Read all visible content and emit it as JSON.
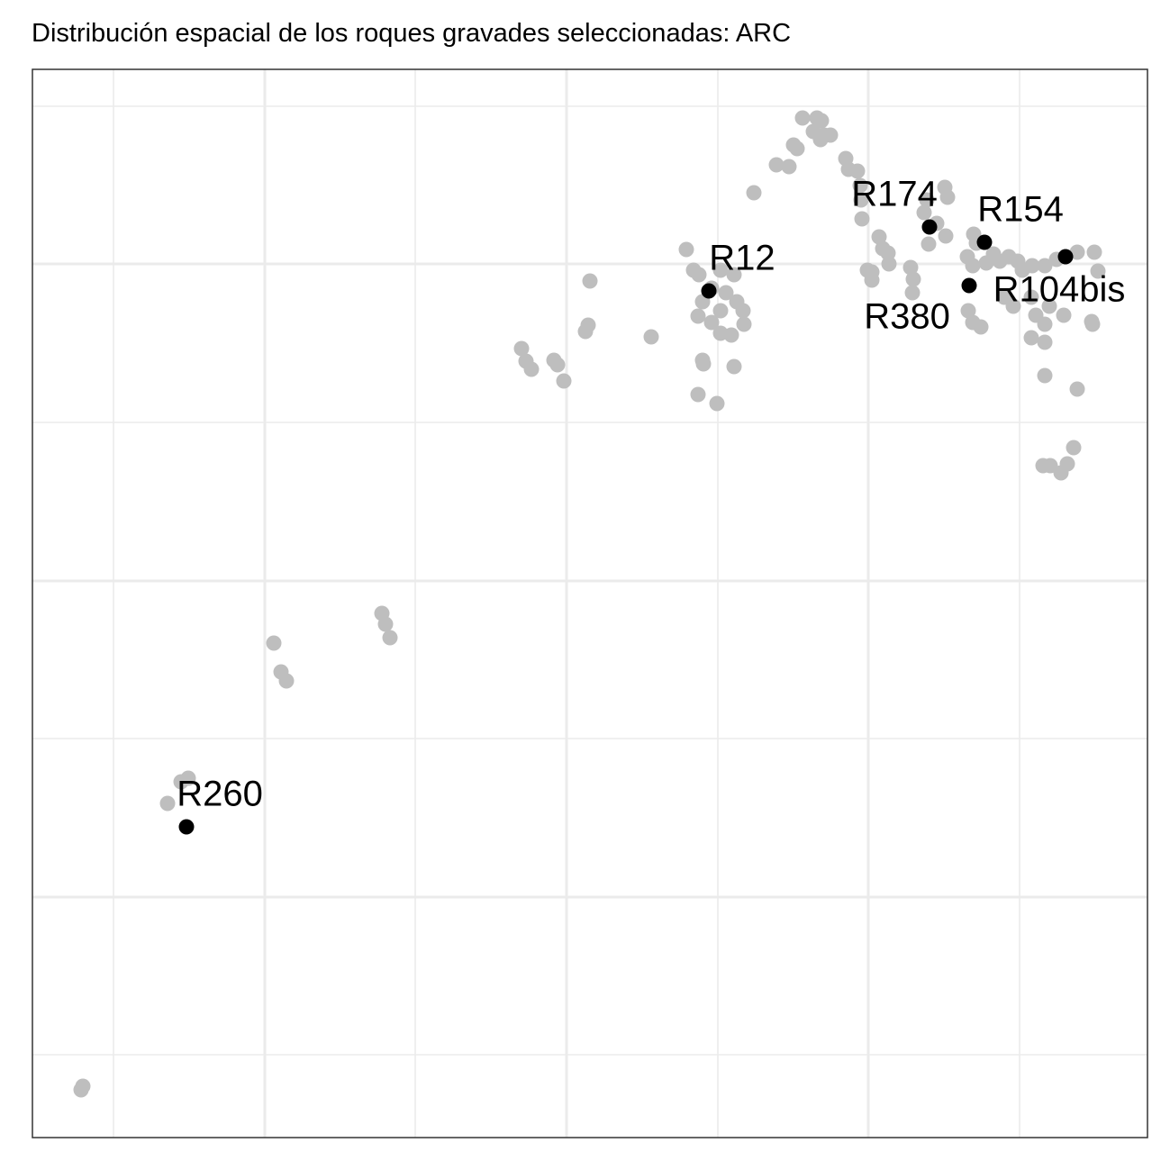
{
  "chart_data": {
    "type": "scatter",
    "title": "Distribución espacial de los roques gravades seleccionadas:  ARC",
    "xlim": [
      36,
      1274
    ],
    "ylim": [
      36,
      1222
    ],
    "xticks": [
      126,
      294,
      461,
      629,
      797,
      964,
      1132
    ],
    "yticks": [
      128,
      303,
      479,
      654,
      830,
      1006,
      1181
    ],
    "grid": true,
    "points": {
      "color": "#bebebe",
      "x": [
        891,
        907,
        912,
        903,
        915,
        922,
        911,
        881,
        885,
        862,
        876,
        837,
        939,
        942,
        952,
        955,
        956,
        957,
        1029,
        1026,
        1049,
        1052,
        1040,
        1031,
        1050,
        976,
        980,
        986,
        987,
        963,
        968,
        968,
        1011,
        1014,
        1013,
        1081,
        1084,
        1074,
        1080,
        1095,
        1103,
        1110,
        1120,
        1130,
        1135,
        1146,
        1160,
        1173,
        1196,
        1215,
        1219,
        1075,
        1080,
        1089,
        1115,
        1125,
        1145,
        1150,
        1165,
        1160,
        1145,
        1160,
        1181,
        1212,
        1213,
        1160,
        1196,
        1158,
        1166,
        1178,
        1185,
        1192,
        762,
        770,
        776,
        800,
        815,
        790,
        806,
        818,
        825,
        800,
        780,
        775,
        790,
        800,
        812,
        826,
        780,
        781,
        815,
        775,
        796,
        723,
        655,
        653,
        650,
        579,
        584,
        590,
        615,
        619,
        626,
        424,
        428,
        433,
        304,
        312,
        318,
        209,
        201,
        186,
        92,
        90
      ],
      "y": [
        1168,
        1168,
        1165,
        1153,
        1149,
        1149,
        1144,
        1138,
        1134,
        1116,
        1114,
        1085,
        1123,
        1111,
        1109,
        1093,
        1077,
        1056,
        1077,
        1063,
        1091,
        1080,
        1051,
        1028,
        1037,
        1036,
        1023,
        1018,
        1006,
        999,
        988,
        997,
        1002,
        989,
        974,
        1039,
        1029,
        1014,
        1004,
        1007,
        1017,
        1009,
        1014,
        1009,
        999,
        1004,
        1004,
        1011,
        1019,
        1019,
        998,
        954,
        941,
        936,
        969,
        959,
        969,
        949,
        959,
        939,
        924,
        919,
        949,
        942,
        939,
        882,
        867,
        782,
        782,
        774,
        784,
        802,
        1022,
        999,
        994,
        999,
        994,
        979,
        974,
        964,
        954,
        954,
        964,
        948,
        941,
        929,
        927,
        939,
        899,
        895,
        892,
        861,
        851,
        925,
        987,
        938,
        931,
        912,
        898,
        889,
        899,
        894,
        876,
        618,
        606,
        591,
        585,
        553,
        543,
        435,
        431,
        407,
        93,
        89
      ]
    },
    "highlighted": {
      "color": "#000000",
      "labels": [
        "R174",
        "R154",
        "R104bis",
        "R12",
        "R380",
        "R260"
      ],
      "x": [
        1032,
        1093,
        1183,
        787,
        1076,
        207
      ],
      "y": [
        1047,
        1030,
        1014,
        976,
        982,
        381
      ]
    }
  }
}
